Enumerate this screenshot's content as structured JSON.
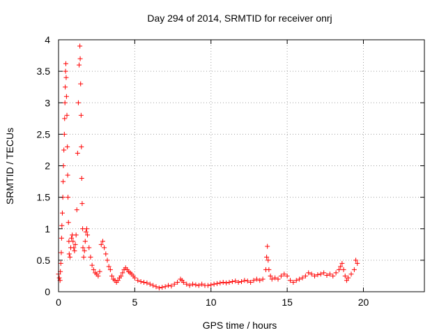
{
  "chart_data": {
    "type": "scatter",
    "title": "Day 294 of 2014, SRMTID for receiver onrj",
    "xlabel": "GPS time / hours",
    "ylabel": "SRMTID / TECUs",
    "xlim": [
      0,
      24
    ],
    "ylim": [
      0,
      4
    ],
    "x_ticks": [
      0,
      5,
      10,
      15,
      20
    ],
    "x_tick_labels": [
      "0",
      "5",
      "10",
      "15",
      "20"
    ],
    "y_ticks": [
      0,
      0.5,
      1,
      1.5,
      2,
      2.5,
      3,
      3.5,
      4
    ],
    "y_tick_labels": [
      "0",
      "0.5",
      "1",
      "1.5",
      "2",
      "2.5",
      "3",
      "3.5",
      "4"
    ],
    "grid": true,
    "marker": "+",
    "color": "#ff0000",
    "series": [
      {
        "name": "SRMTID",
        "points": [
          [
            0.0,
            0.28
          ],
          [
            0.05,
            0.22
          ],
          [
            0.1,
            0.18
          ],
          [
            0.12,
            0.32
          ],
          [
            0.15,
            0.45
          ],
          [
            0.18,
            0.62
          ],
          [
            0.2,
            0.85
          ],
          [
            0.22,
            1.05
          ],
          [
            0.25,
            1.25
          ],
          [
            0.28,
            1.5
          ],
          [
            0.3,
            1.75
          ],
          [
            0.32,
            2.0
          ],
          [
            0.35,
            2.25
          ],
          [
            0.38,
            2.5
          ],
          [
            0.4,
            2.75
          ],
          [
            0.42,
            3.0
          ],
          [
            0.44,
            3.25
          ],
          [
            0.46,
            3.5
          ],
          [
            0.48,
            3.62
          ],
          [
            0.5,
            3.4
          ],
          [
            0.52,
            3.1
          ],
          [
            0.55,
            2.8
          ],
          [
            0.58,
            2.3
          ],
          [
            0.6,
            1.85
          ],
          [
            0.62,
            1.5
          ],
          [
            0.65,
            1.1
          ],
          [
            0.68,
            0.8
          ],
          [
            0.7,
            0.6
          ],
          [
            0.75,
            0.55
          ],
          [
            0.8,
            0.7
          ],
          [
            0.85,
            0.85
          ],
          [
            0.9,
            0.9
          ],
          [
            0.95,
            0.8
          ],
          [
            1.0,
            0.7
          ],
          [
            1.05,
            0.65
          ],
          [
            1.1,
            0.75
          ],
          [
            1.15,
            0.9
          ],
          [
            1.2,
            1.3
          ],
          [
            1.25,
            2.2
          ],
          [
            1.3,
            3.0
          ],
          [
            1.35,
            3.6
          ],
          [
            1.4,
            3.9
          ],
          [
            1.42,
            3.7
          ],
          [
            1.45,
            3.3
          ],
          [
            1.48,
            2.8
          ],
          [
            1.5,
            2.3
          ],
          [
            1.52,
            1.8
          ],
          [
            1.55,
            1.4
          ],
          [
            1.58,
            1.0
          ],
          [
            1.6,
            0.7
          ],
          [
            1.65,
            0.55
          ],
          [
            1.7,
            0.65
          ],
          [
            1.75,
            0.8
          ],
          [
            1.8,
            0.95
          ],
          [
            1.85,
            1.0
          ],
          [
            1.9,
            0.9
          ],
          [
            2.0,
            0.7
          ],
          [
            2.1,
            0.55
          ],
          [
            2.2,
            0.42
          ],
          [
            2.3,
            0.35
          ],
          [
            2.4,
            0.3
          ],
          [
            2.5,
            0.28
          ],
          [
            2.6,
            0.25
          ],
          [
            2.7,
            0.32
          ],
          [
            2.8,
            0.75
          ],
          [
            2.9,
            0.8
          ],
          [
            3.0,
            0.7
          ],
          [
            3.1,
            0.6
          ],
          [
            3.2,
            0.5
          ],
          [
            3.3,
            0.4
          ],
          [
            3.4,
            0.35
          ],
          [
            3.5,
            0.25
          ],
          [
            3.6,
            0.2
          ],
          [
            3.7,
            0.18
          ],
          [
            3.8,
            0.15
          ],
          [
            3.9,
            0.18
          ],
          [
            4.0,
            0.22
          ],
          [
            4.1,
            0.25
          ],
          [
            4.2,
            0.3
          ],
          [
            4.3,
            0.35
          ],
          [
            4.4,
            0.38
          ],
          [
            4.5,
            0.35
          ],
          [
            4.6,
            0.32
          ],
          [
            4.7,
            0.3
          ],
          [
            4.8,
            0.28
          ],
          [
            4.9,
            0.25
          ],
          [
            5.0,
            0.22
          ],
          [
            5.2,
            0.18
          ],
          [
            5.4,
            0.16
          ],
          [
            5.6,
            0.15
          ],
          [
            5.8,
            0.14
          ],
          [
            6.0,
            0.12
          ],
          [
            6.2,
            0.1
          ],
          [
            6.4,
            0.08
          ],
          [
            6.6,
            0.06
          ],
          [
            6.8,
            0.07
          ],
          [
            7.0,
            0.08
          ],
          [
            7.2,
            0.1
          ],
          [
            7.4,
            0.09
          ],
          [
            7.6,
            0.12
          ],
          [
            7.8,
            0.15
          ],
          [
            8.0,
            0.2
          ],
          [
            8.1,
            0.18
          ],
          [
            8.2,
            0.15
          ],
          [
            8.4,
            0.12
          ],
          [
            8.6,
            0.1
          ],
          [
            8.8,
            0.12
          ],
          [
            9.0,
            0.11
          ],
          [
            9.2,
            0.1
          ],
          [
            9.4,
            0.12
          ],
          [
            9.6,
            0.1
          ],
          [
            9.8,
            0.1
          ],
          [
            10.0,
            0.11
          ],
          [
            10.2,
            0.12
          ],
          [
            10.4,
            0.13
          ],
          [
            10.6,
            0.14
          ],
          [
            10.8,
            0.15
          ],
          [
            11.0,
            0.14
          ],
          [
            11.2,
            0.15
          ],
          [
            11.4,
            0.16
          ],
          [
            11.6,
            0.17
          ],
          [
            11.8,
            0.15
          ],
          [
            12.0,
            0.16
          ],
          [
            12.2,
            0.18
          ],
          [
            12.4,
            0.17
          ],
          [
            12.6,
            0.15
          ],
          [
            12.8,
            0.18
          ],
          [
            13.0,
            0.2
          ],
          [
            13.2,
            0.18
          ],
          [
            13.4,
            0.2
          ],
          [
            13.6,
            0.35
          ],
          [
            13.65,
            0.55
          ],
          [
            13.7,
            0.72
          ],
          [
            13.75,
            0.5
          ],
          [
            13.8,
            0.35
          ],
          [
            13.9,
            0.25
          ],
          [
            14.0,
            0.2
          ],
          [
            14.2,
            0.22
          ],
          [
            14.4,
            0.2
          ],
          [
            14.6,
            0.25
          ],
          [
            14.8,
            0.28
          ],
          [
            15.0,
            0.25
          ],
          [
            15.2,
            0.18
          ],
          [
            15.4,
            0.15
          ],
          [
            15.6,
            0.18
          ],
          [
            15.8,
            0.2
          ],
          [
            16.0,
            0.22
          ],
          [
            16.2,
            0.25
          ],
          [
            16.4,
            0.3
          ],
          [
            16.6,
            0.28
          ],
          [
            16.8,
            0.25
          ],
          [
            17.0,
            0.27
          ],
          [
            17.2,
            0.28
          ],
          [
            17.4,
            0.3
          ],
          [
            17.6,
            0.26
          ],
          [
            17.8,
            0.28
          ],
          [
            18.0,
            0.25
          ],
          [
            18.2,
            0.3
          ],
          [
            18.4,
            0.35
          ],
          [
            18.5,
            0.4
          ],
          [
            18.6,
            0.45
          ],
          [
            18.7,
            0.35
          ],
          [
            18.8,
            0.25
          ],
          [
            18.9,
            0.18
          ],
          [
            19.0,
            0.22
          ],
          [
            19.2,
            0.28
          ],
          [
            19.4,
            0.35
          ],
          [
            19.5,
            0.5
          ],
          [
            19.6,
            0.45
          ]
        ]
      }
    ]
  }
}
